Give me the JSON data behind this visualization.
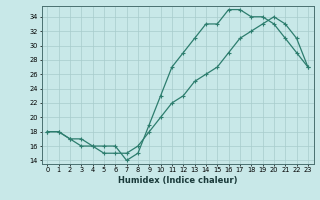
{
  "xlabel": "Humidex (Indice chaleur)",
  "line1_x": [
    0,
    1,
    2,
    3,
    4,
    5,
    6,
    7,
    8,
    9,
    10,
    11,
    12,
    13,
    14,
    15,
    16,
    17,
    18,
    19,
    20,
    21,
    22,
    23
  ],
  "line1_y": [
    18,
    18,
    17,
    17,
    16,
    16,
    16,
    14,
    15,
    19,
    23,
    27,
    29,
    31,
    33,
    33,
    35,
    35,
    34,
    34,
    33,
    31,
    29,
    27
  ],
  "line2_x": [
    0,
    1,
    2,
    3,
    4,
    5,
    6,
    7,
    8,
    9,
    10,
    11,
    12,
    13,
    14,
    15,
    16,
    17,
    18,
    19,
    20,
    21,
    22,
    23
  ],
  "line2_y": [
    18,
    18,
    17,
    16,
    16,
    15,
    15,
    15,
    16,
    18,
    20,
    22,
    23,
    25,
    26,
    27,
    29,
    31,
    32,
    33,
    34,
    33,
    31,
    27
  ],
  "line_color": "#2d7d6e",
  "bg_color": "#c8e8e8",
  "grid_color": "#a8cccc",
  "xlim": [
    -0.5,
    23.5
  ],
  "ylim": [
    13.5,
    35.5
  ],
  "yticks": [
    14,
    16,
    18,
    20,
    22,
    24,
    26,
    28,
    30,
    32,
    34
  ],
  "xticks": [
    0,
    1,
    2,
    3,
    4,
    5,
    6,
    7,
    8,
    9,
    10,
    11,
    12,
    13,
    14,
    15,
    16,
    17,
    18,
    19,
    20,
    21,
    22,
    23
  ],
  "xlabel_fontsize": 6.0,
  "tick_fontsize": 4.8,
  "linewidth": 0.9,
  "marker_size": 3.0
}
